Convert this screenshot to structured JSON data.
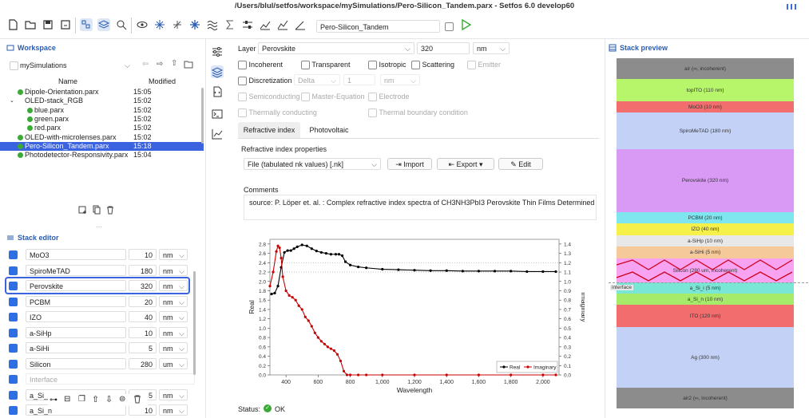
{
  "window": {
    "title": "/Users/blul/setfos/workspace/mySimulations/Pero-Silicon_Tandem.parx - Setfos 6.0 develop60"
  },
  "toolbar": {
    "sim_name": "Pero-Silicon_Tandem"
  },
  "workspace": {
    "title": "Workspace",
    "folder": "mySimulations",
    "col_name": "Name",
    "col_modified": "Modified",
    "files": [
      {
        "name": "Dipole-Orientation.parx",
        "time": "15:05"
      },
      {
        "name": "OLED-stack_RGB",
        "time": "15:02"
      },
      {
        "name": "blue.parx",
        "time": "15:02"
      },
      {
        "name": "green.parx",
        "time": "15:02"
      },
      {
        "name": "red.parx",
        "time": "15:02"
      },
      {
        "name": "OLED-with-microlenses.parx",
        "time": "15:02"
      },
      {
        "name": "Pero-Silicon_Tandem.parx",
        "time": "15:18"
      },
      {
        "name": "Photodetector-Responsivity.parx",
        "time": "15:04"
      }
    ]
  },
  "stack_editor": {
    "title": "Stack editor",
    "rows": [
      {
        "name": "MoO3",
        "value": "10",
        "unit": "nm"
      },
      {
        "name": "SpiroMeTAD",
        "value": "180",
        "unit": "nm"
      },
      {
        "name": "Perovskite",
        "value": "320",
        "unit": "nm"
      },
      {
        "name": "PCBM",
        "value": "20",
        "unit": "nm"
      },
      {
        "name": "IZO",
        "value": "40",
        "unit": "nm"
      },
      {
        "name": "a-SiHp",
        "value": "10",
        "unit": "nm"
      },
      {
        "name": "a-SiHi",
        "value": "5",
        "unit": "nm"
      },
      {
        "name": "Silicon",
        "value": "280",
        "unit": "um"
      },
      {
        "name": "Interface",
        "value": "",
        "unit": ""
      },
      {
        "name": "a_Si_",
        "value": "5",
        "unit": "nm"
      },
      {
        "name": "a_Si_n",
        "value": "10",
        "unit": "nm"
      }
    ]
  },
  "layer": {
    "label": "Layer",
    "name": "Perovskite",
    "thickness": "320",
    "unit": "nm",
    "checks": [
      "Incoherent",
      "Transparent",
      "Isotropic",
      "Scattering",
      "Emitter"
    ],
    "discretization": "Discretization",
    "delta": "Delta",
    "delta_val": "1",
    "delta_unit": "nm",
    "checks2": [
      "Semiconducting",
      "Master-Equation",
      "Electrode"
    ],
    "checks3": [
      "Thermally conducting",
      "Thermal boundary condition"
    ],
    "tab1": "Refractive index",
    "tab2": "Photovoltaic",
    "props_title": "Refractive index properties",
    "file_type": "File (tabulated nk values) [.nk]",
    "import": "Import",
    "export": "Export",
    "edit": "Edit",
    "comments_label": "Comments",
    "comment": "source: P. Löper et. al. : Complex refractive index spectra of CH3NH3PbI3 Perovskite Thin Films Determined by :",
    "status_label": "Status:",
    "status": "OK"
  },
  "chart_data": {
    "type": "line",
    "xlabel": "Wavelength",
    "ylabel": "Real",
    "y2label": "Imaginary",
    "xlim": [
      300,
      2100
    ],
    "ylim": [
      0,
      2.9
    ],
    "y2lim": [
      0,
      1.45
    ],
    "xticks": [
      "400",
      "600",
      "800",
      "1,000",
      "1,200",
      "1,400",
      "1,600",
      "1,800",
      "2,000"
    ],
    "yticks": [
      "0.0",
      "0.2",
      "0.4",
      "0.6",
      "0.8",
      "1.0",
      "1.2",
      "1.4",
      "1.6",
      "1.8",
      "2.0",
      "2.2",
      "2.4",
      "2.6",
      "2.8"
    ],
    "y2ticks": [
      "0.0",
      "0.1",
      "0.2",
      "0.3",
      "0.4",
      "0.5",
      "0.6",
      "0.7",
      "0.8",
      "0.9",
      "1.0",
      "1.1",
      "1.2",
      "1.3",
      "1.4"
    ],
    "series": [
      {
        "name": "Real",
        "color": "#000000",
        "axis": "left",
        "x": [
          310,
          330,
          350,
          370,
          390,
          410,
          430,
          450,
          470,
          500,
          530,
          560,
          590,
          620,
          650,
          680,
          710,
          730,
          750,
          770,
          800,
          850,
          900,
          1000,
          1100,
          1200,
          1300,
          1400,
          1500,
          1600,
          1700,
          1800,
          1900,
          2000,
          2080
        ],
        "y": [
          1.73,
          1.75,
          1.9,
          2.3,
          2.62,
          2.66,
          2.66,
          2.7,
          2.74,
          2.78,
          2.76,
          2.7,
          2.65,
          2.62,
          2.6,
          2.58,
          2.58,
          2.58,
          2.55,
          2.42,
          2.35,
          2.31,
          2.29,
          2.26,
          2.25,
          2.24,
          2.23,
          2.23,
          2.22,
          2.22,
          2.22,
          2.22,
          2.21,
          2.21,
          2.21
        ]
      },
      {
        "name": "Imaginary",
        "color": "#cc0000",
        "axis": "right",
        "x": [
          300,
          320,
          340,
          350,
          360,
          370,
          380,
          400,
          420,
          440,
          460,
          480,
          500,
          520,
          540,
          560,
          580,
          600,
          620,
          640,
          660,
          680,
          700,
          720,
          740,
          760,
          780,
          800,
          850,
          900,
          1000,
          1200,
          1400,
          1600,
          1800,
          2000,
          2080
        ],
        "y": [
          0.95,
          1.1,
          1.32,
          1.38,
          1.36,
          1.25,
          1.05,
          0.9,
          0.85,
          0.83,
          0.8,
          0.74,
          0.7,
          0.62,
          0.58,
          0.52,
          0.45,
          0.4,
          0.36,
          0.33,
          0.3,
          0.28,
          0.26,
          0.22,
          0.15,
          0.04,
          0.0,
          0.0,
          0.0,
          0.0,
          0.0,
          0.0,
          0.0,
          0.0,
          0.0,
          0.0,
          0.0
        ]
      }
    ]
  },
  "stack_preview": {
    "title": "Stack preview",
    "interface_label": "interface",
    "layers": [
      {
        "label": "air (∞, incoherent)",
        "color": "#8c8c8c"
      },
      {
        "label": "topITO (110 nm)",
        "color": "#b7f56a"
      },
      {
        "label": "MoO3 (10 nm)",
        "color": "#f26d6d"
      },
      {
        "label": "SpiroMeTAD (180 nm)",
        "color": "#c2d1f5"
      },
      {
        "label": "Perovskite (320 nm)",
        "color": "#d89af5"
      },
      {
        "label": "PCBM (20 nm)",
        "color": "#7fe6ef"
      },
      {
        "label": "IZO (40 nm)",
        "color": "#f5f04a"
      },
      {
        "label": "a-SiHp (10 nm)",
        "color": "#e8e8e8"
      },
      {
        "label": "a-SiHi (5 nm)",
        "color": "#f5c99a"
      },
      {
        "label": "Silicon (280 um, incoherent)",
        "color": "#f7a3f2"
      },
      {
        "label": "a_Si_i (5 nm)",
        "color": "#79e6d6"
      },
      {
        "label": "a_Si_n (10 nm)",
        "color": "#a6ec6a"
      },
      {
        "label": "ITO (120 nm)",
        "color": "#f26d6d"
      },
      {
        "label": "Ag (300 nm)",
        "color": "#c2d1f5"
      },
      {
        "label": "air2 (∞, incoherent)",
        "color": "#8c8c8c"
      }
    ]
  }
}
